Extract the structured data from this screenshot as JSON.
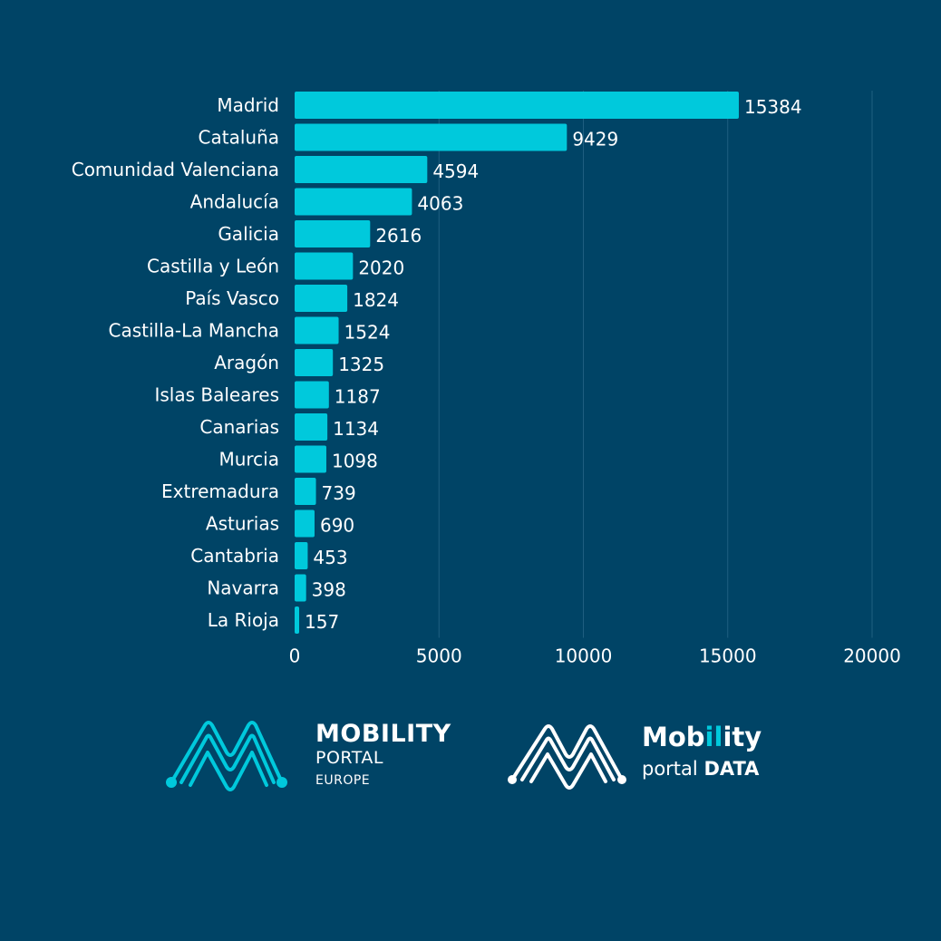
{
  "chart_data": {
    "type": "bar",
    "orientation": "horizontal",
    "categories": [
      "Madrid",
      "Cataluña",
      "Comunidad Valenciana",
      "Andalucía",
      "Galicia",
      "Castilla y León",
      "País Vasco",
      "Castilla-La Mancha",
      "Aragón",
      "Islas Baleares",
      "Canarias",
      "Murcia",
      "Extremadura",
      "Asturias",
      "Cantabria",
      "Navarra",
      "La Rioja"
    ],
    "values": [
      15384,
      9429,
      4594,
      4063,
      2616,
      2020,
      1824,
      1524,
      1325,
      1187,
      1134,
      1098,
      739,
      690,
      453,
      398,
      157
    ],
    "xlim": [
      0,
      20000
    ],
    "xticks": [
      0,
      5000,
      10000,
      15000,
      20000
    ],
    "grid": true,
    "bar_color": "#00c9dc",
    "grid_color": "#1f5f80",
    "background": "#004466"
  },
  "logos": {
    "left": {
      "line1": "MOBILITY",
      "line2": "PORTAL",
      "line3": "EUROPE",
      "color": "#00c9dc"
    },
    "right": {
      "word_start": "Mob",
      "word_highlight": "il",
      "word_end": "ity",
      "line2_regular": "portal",
      "line2_bold": "DATA",
      "color": "#ffffff",
      "accent": "#00c9dc"
    }
  }
}
